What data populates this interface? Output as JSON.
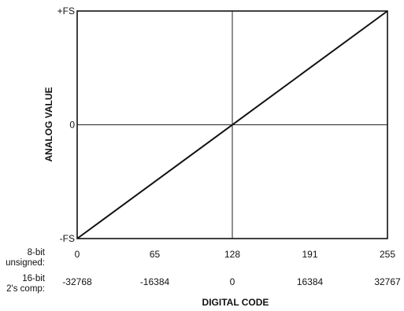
{
  "chart_data": {
    "type": "line",
    "title": "",
    "xlabel": "DIGITAL CODE",
    "ylabel": "ANALOG VALUE",
    "xlim": [
      0,
      255
    ],
    "ylim_labels": [
      "-FS",
      "0",
      "+FS"
    ],
    "grid": "center crosshair lines at code 128 and analog 0",
    "series": [
      {
        "x": [
          0,
          255
        ],
        "y": [
          "-FS",
          "+FS"
        ]
      }
    ],
    "x_tick_rows": [
      {
        "label": "8-bit unsigned:",
        "label_lines": [
          "8-bit",
          "unsigned:"
        ],
        "ticks": [
          "0",
          "65",
          "128",
          "191",
          "255"
        ]
      },
      {
        "label": "16-bit 2's comp:",
        "label_lines": [
          "16-bit",
          "2's comp:"
        ],
        "ticks": [
          "-32768",
          "-16384",
          "0",
          "16384",
          "32767"
        ]
      }
    ],
    "y_ticks": [
      "+FS",
      "0",
      "-FS"
    ]
  }
}
